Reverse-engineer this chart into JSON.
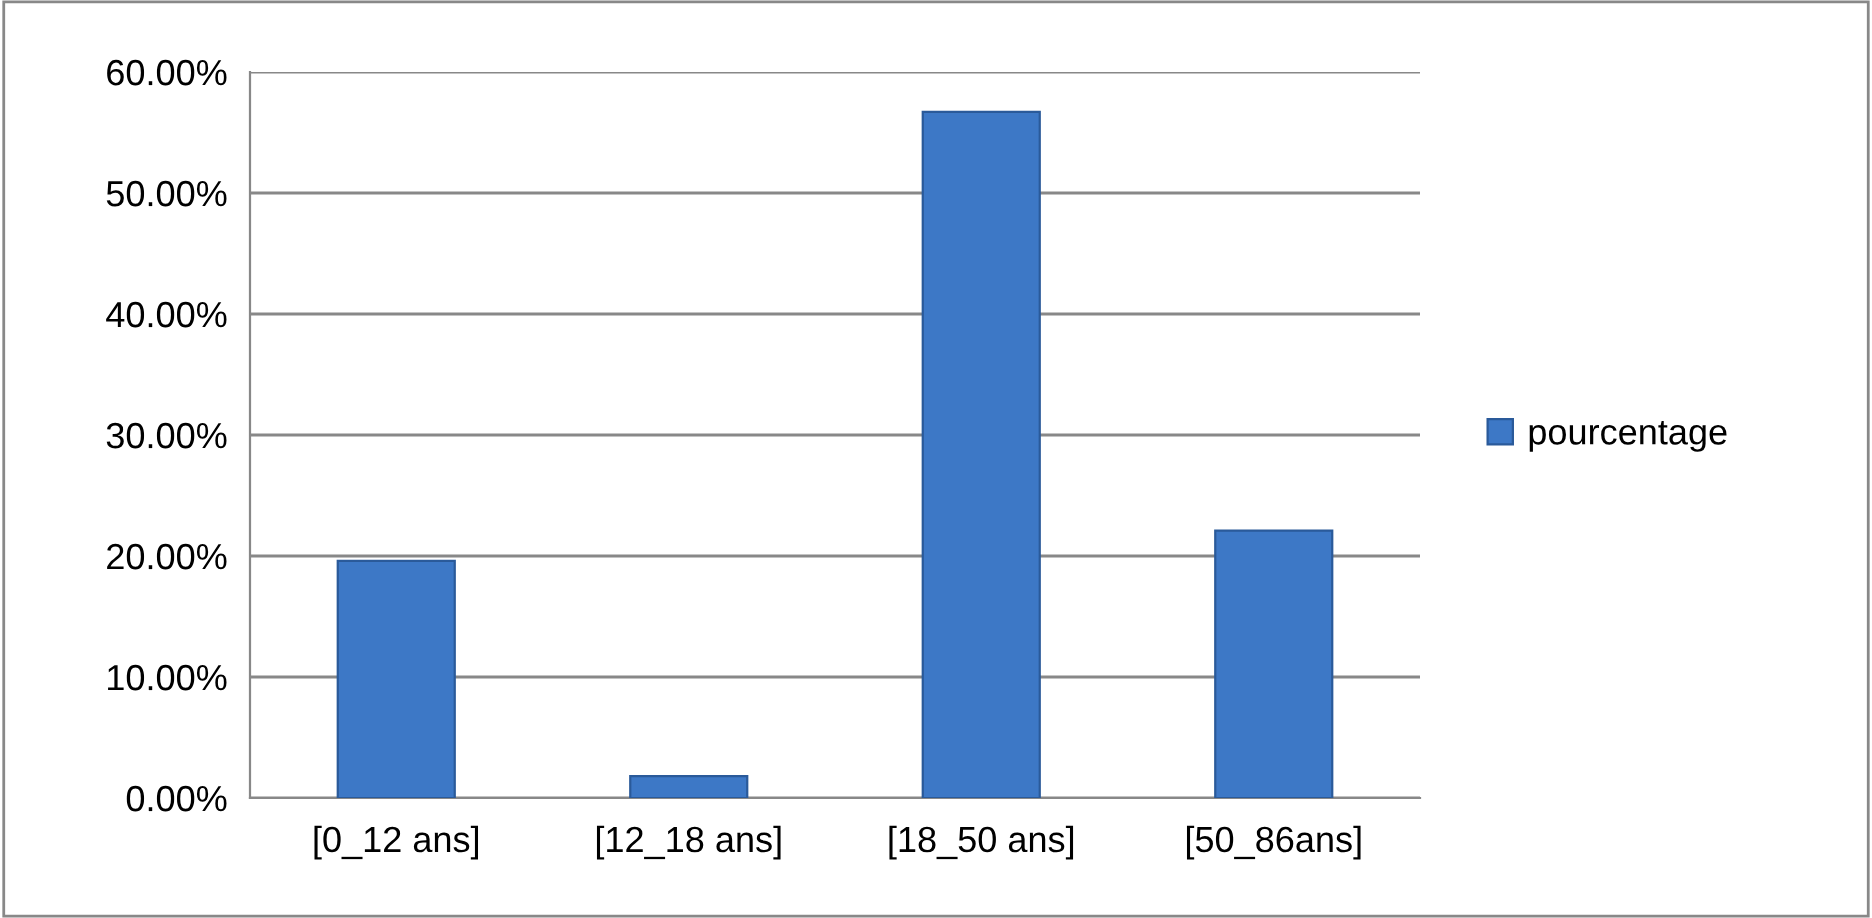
{
  "chart_data": {
    "type": "bar",
    "categories": [
      "[0_12 ans]",
      "[12_18 ans]",
      "[18_50 ans]",
      "[50_86ans]"
    ],
    "series": [
      {
        "name": "pourcentage",
        "color": "#3d78c6",
        "values": [
          19.6,
          1.8,
          56.7,
          22.1
        ]
      }
    ],
    "ylim": [
      0,
      60
    ],
    "yticks": [
      {
        "value": 0,
        "label": "0.00%"
      },
      {
        "value": 10,
        "label": "10.00%"
      },
      {
        "value": 20,
        "label": "20.00%"
      },
      {
        "value": 30,
        "label": "30.00%"
      },
      {
        "value": 40,
        "label": "40.00%"
      },
      {
        "value": 50,
        "label": "50.00%"
      },
      {
        "value": 60,
        "label": "60.00%"
      }
    ],
    "grid": "y",
    "legend": "right"
  }
}
